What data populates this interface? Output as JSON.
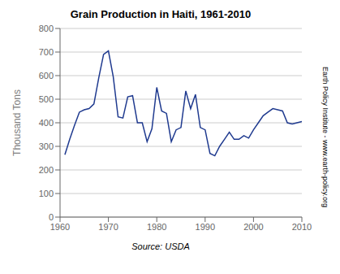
{
  "chart_data": {
    "type": "line",
    "title": "Grain Production in Haiti, 1961-2010",
    "ylabel": "Thousand Tons",
    "annotations": [
      "Source: USDA",
      "Earth Policy Institute - www.earth-policy.org"
    ],
    "x": [
      1961,
      1962,
      1963,
      1964,
      1965,
      1966,
      1967,
      1968,
      1969,
      1970,
      1971,
      1972,
      1973,
      1974,
      1975,
      1976,
      1977,
      1978,
      1979,
      1980,
      1981,
      1982,
      1983,
      1984,
      1985,
      1986,
      1987,
      1988,
      1989,
      1990,
      1991,
      1992,
      1993,
      1994,
      1995,
      1996,
      1997,
      1998,
      1999,
      2000,
      2001,
      2002,
      2003,
      2004,
      2005,
      2006,
      2007,
      2008,
      2009,
      2010
    ],
    "values": [
      265,
      330,
      390,
      445,
      455,
      460,
      480,
      590,
      690,
      705,
      595,
      425,
      420,
      510,
      515,
      400,
      400,
      320,
      375,
      550,
      450,
      440,
      320,
      370,
      380,
      535,
      460,
      520,
      380,
      370,
      270,
      260,
      300,
      330,
      360,
      330,
      330,
      345,
      335,
      370,
      400,
      430,
      445,
      460,
      455,
      450,
      400,
      395,
      400,
      405
    ],
    "color": "#1F3A8F",
    "xlim": [
      1960,
      2010
    ],
    "ylim": [
      0,
      800
    ],
    "xticks": [
      1960,
      1970,
      1980,
      1990,
      2000,
      2010
    ],
    "yticks": [
      0,
      100,
      200,
      300,
      400,
      500,
      600,
      700,
      800
    ],
    "grid": "y"
  }
}
